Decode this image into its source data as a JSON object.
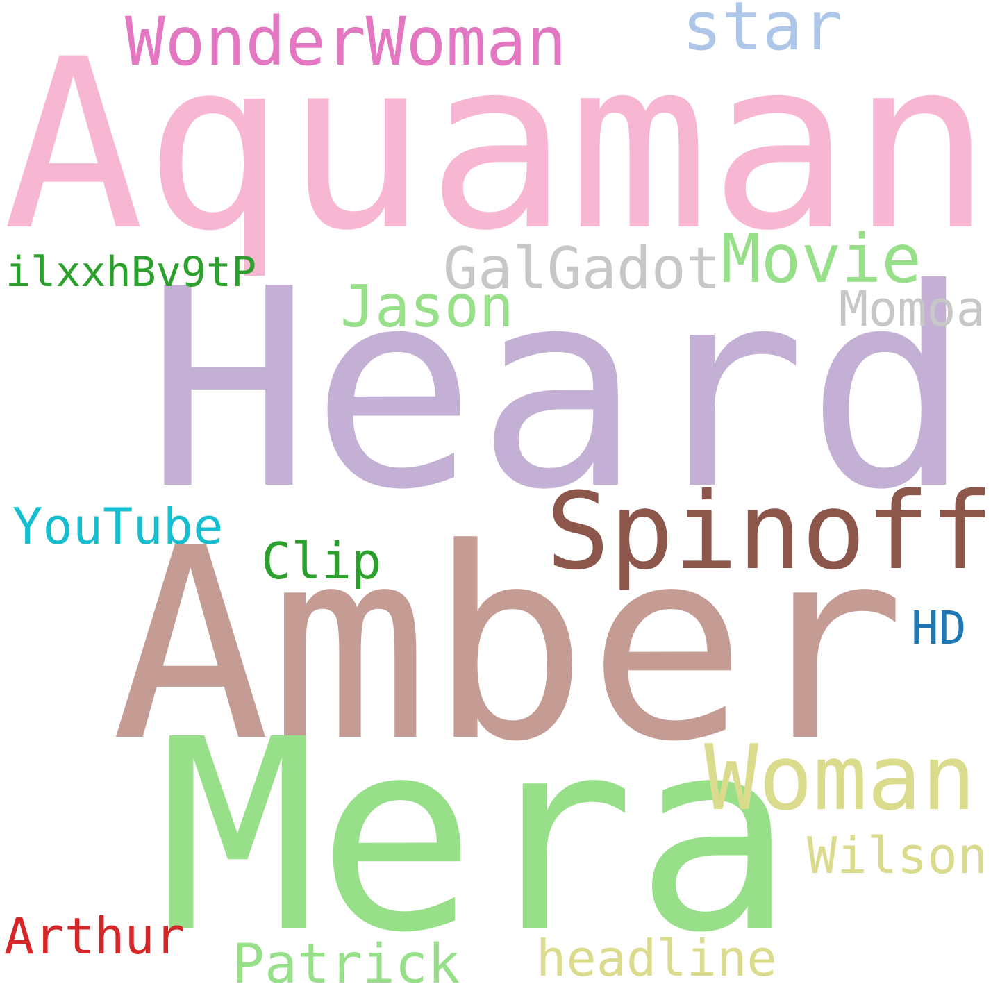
{
  "words": [
    {
      "id": "aquaman",
      "text": "Aquaman",
      "color": "#f7b6d2"
    },
    {
      "id": "heard",
      "text": "Heard",
      "color": "#c5b0d5"
    },
    {
      "id": "amber",
      "text": "Amber",
      "color": "#c49c94"
    },
    {
      "id": "mera",
      "text": "Mera",
      "color": "#98df8a"
    },
    {
      "id": "spinoff",
      "text": "Spinoff",
      "color": "#8c564b"
    },
    {
      "id": "woman",
      "text": "Woman",
      "color": "#dbdb8d"
    },
    {
      "id": "wonderwoman",
      "text": "WonderWoman",
      "color": "#e377c2"
    },
    {
      "id": "star",
      "text": "star",
      "color": "#aec7e8"
    },
    {
      "id": "galgadot",
      "text": "GalGadot",
      "color": "#c7c7c7"
    },
    {
      "id": "movie",
      "text": "Movie",
      "color": "#98df8a"
    },
    {
      "id": "jason",
      "text": "Jason",
      "color": "#98df8a"
    },
    {
      "id": "momoa",
      "text": "Momoa",
      "color": "#c7c7c7"
    },
    {
      "id": "ilxxhbv9tp",
      "text": "ilxxhBv9tP",
      "color": "#2ca02c"
    },
    {
      "id": "youtube",
      "text": "YouTube",
      "color": "#17becf"
    },
    {
      "id": "clip",
      "text": "Clip",
      "color": "#2ca02c"
    },
    {
      "id": "hd",
      "text": "HD",
      "color": "#1f77b4"
    },
    {
      "id": "wilson",
      "text": "Wilson",
      "color": "#dbdb8d"
    },
    {
      "id": "arthur",
      "text": "Arthur",
      "color": "#d62728"
    },
    {
      "id": "patrick",
      "text": "Patrick",
      "color": "#98df8a"
    },
    {
      "id": "headline",
      "text": "headline",
      "color": "#dbdb8d"
    }
  ]
}
